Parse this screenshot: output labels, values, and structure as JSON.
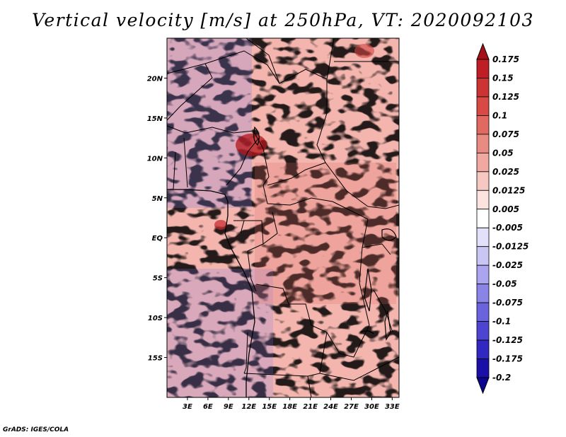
{
  "title": "Vertical velocity [m/s] at 250hPa, VT: 2020092103",
  "credit": "GrADS: IGES/COLA",
  "map": {
    "lat_labels": [
      "20N",
      "15N",
      "10N",
      "5N",
      "EQ",
      "5S",
      "10S",
      "15S"
    ],
    "lat_values": [
      20,
      15,
      10,
      5,
      0,
      -5,
      -10,
      -15
    ],
    "lon_labels": [
      "3E",
      "6E",
      "9E",
      "12E",
      "15E",
      "18E",
      "21E",
      "24E",
      "27E",
      "30E",
      "33E"
    ],
    "lon_values": [
      3,
      6,
      9,
      12,
      15,
      18,
      21,
      24,
      27,
      30,
      33
    ],
    "lat_range": [
      -20,
      25
    ],
    "lon_range": [
      0,
      34
    ]
  },
  "colorbar": {
    "labels": [
      "0.175",
      "0.15",
      "0.125",
      "0.1",
      "0.075",
      "0.05",
      "0.025",
      "0.0125",
      "0.005",
      "-0.005",
      "-0.0125",
      "-0.025",
      "-0.05",
      "-0.075",
      "-0.1",
      "-0.125",
      "-0.175",
      "-0.2"
    ],
    "colors": [
      "#a50f15",
      "#bd1f24",
      "#cc3333",
      "#d94a45",
      "#e06a60",
      "#e88b80",
      "#f0a8a0",
      "#f7c8c2",
      "#fbe3e0",
      "#ffffff",
      "#e3e1fa",
      "#c9c6f5",
      "#aaa5ee",
      "#8a84e6",
      "#6b63dd",
      "#4d44d2",
      "#3128c2",
      "#1a10a8",
      "#0c0590"
    ]
  },
  "colors": {
    "positive": "#e06a60",
    "negative": "#7f7ae6"
  }
}
